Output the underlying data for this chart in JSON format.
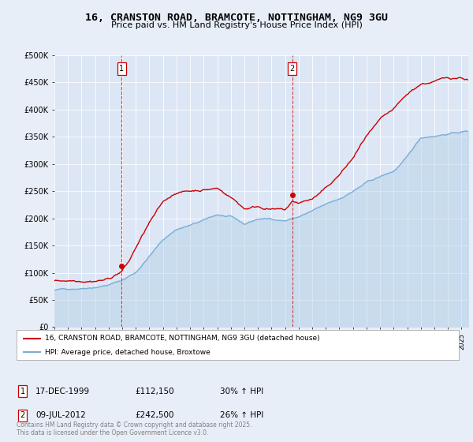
{
  "title": "16, CRANSTON ROAD, BRAMCOTE, NOTTINGHAM, NG9 3GU",
  "subtitle": "Price paid vs. HM Land Registry's House Price Index (HPI)",
  "background_color": "#e8eef8",
  "plot_background": "#dce6f5",
  "ylabel_ticks": [
    "£0",
    "£50K",
    "£100K",
    "£150K",
    "£200K",
    "£250K",
    "£300K",
    "£350K",
    "£400K",
    "£450K",
    "£500K"
  ],
  "ytick_values": [
    0,
    50000,
    100000,
    150000,
    200000,
    250000,
    300000,
    350000,
    400000,
    450000,
    500000
  ],
  "xlim_start": 1995,
  "xlim_end": 2025.5,
  "ylim_min": 0,
  "ylim_max": 500000,
  "sale1_date": 1999.96,
  "sale1_price": 112150,
  "sale1_label": "1",
  "sale2_date": 2012.52,
  "sale2_price": 242500,
  "sale2_label": "2",
  "legend_red_label": "16, CRANSTON ROAD, BRAMCOTE, NOTTINGHAM, NG9 3GU (detached house)",
  "legend_blue_label": "HPI: Average price, detached house, Broxtowe",
  "footer": "Contains HM Land Registry data © Crown copyright and database right 2025.\nThis data is licensed under the Open Government Licence v3.0.",
  "red_color": "#cc0000",
  "blue_color": "#7aaed6",
  "blue_fill_color": "#b8d4e8",
  "dashed_color": "#cc0000",
  "hpi_keypoints": [
    [
      1995.0,
      68000
    ],
    [
      1996.0,
      70000
    ],
    [
      1997.0,
      73000
    ],
    [
      1998.0,
      77000
    ],
    [
      1999.0,
      82000
    ],
    [
      2000.0,
      90000
    ],
    [
      2001.0,
      105000
    ],
    [
      2002.0,
      135000
    ],
    [
      2003.0,
      165000
    ],
    [
      2004.0,
      185000
    ],
    [
      2005.0,
      192000
    ],
    [
      2006.0,
      200000
    ],
    [
      2007.0,
      210000
    ],
    [
      2008.0,
      205000
    ],
    [
      2009.0,
      190000
    ],
    [
      2010.0,
      200000
    ],
    [
      2011.0,
      200000
    ],
    [
      2012.0,
      198000
    ],
    [
      2013.0,
      205000
    ],
    [
      2014.0,
      215000
    ],
    [
      2015.0,
      225000
    ],
    [
      2016.0,
      235000
    ],
    [
      2017.0,
      250000
    ],
    [
      2018.0,
      265000
    ],
    [
      2019.0,
      275000
    ],
    [
      2020.0,
      285000
    ],
    [
      2021.0,
      310000
    ],
    [
      2022.0,
      345000
    ],
    [
      2023.0,
      350000
    ],
    [
      2024.0,
      355000
    ],
    [
      2025.5,
      360000
    ]
  ],
  "red_keypoints": [
    [
      1995.0,
      85000
    ],
    [
      1996.0,
      87000
    ],
    [
      1997.0,
      90000
    ],
    [
      1998.0,
      93000
    ],
    [
      1999.0,
      97000
    ],
    [
      1999.96,
      112150
    ],
    [
      2000.5,
      130000
    ],
    [
      2001.0,
      155000
    ],
    [
      2002.0,
      200000
    ],
    [
      2003.0,
      235000
    ],
    [
      2004.0,
      255000
    ],
    [
      2005.0,
      258000
    ],
    [
      2006.0,
      262000
    ],
    [
      2007.0,
      265000
    ],
    [
      2008.0,
      250000
    ],
    [
      2009.0,
      230000
    ],
    [
      2010.0,
      235000
    ],
    [
      2011.0,
      232000
    ],
    [
      2012.0,
      228000
    ],
    [
      2012.52,
      242500
    ],
    [
      2013.0,
      240000
    ],
    [
      2014.0,
      248000
    ],
    [
      2015.0,
      265000
    ],
    [
      2016.0,
      290000
    ],
    [
      2017.0,
      320000
    ],
    [
      2018.0,
      360000
    ],
    [
      2019.0,
      385000
    ],
    [
      2020.0,
      400000
    ],
    [
      2021.0,
      425000
    ],
    [
      2022.0,
      445000
    ],
    [
      2023.0,
      450000
    ],
    [
      2024.0,
      455000
    ],
    [
      2025.0,
      458000
    ],
    [
      2025.5,
      455000
    ]
  ]
}
